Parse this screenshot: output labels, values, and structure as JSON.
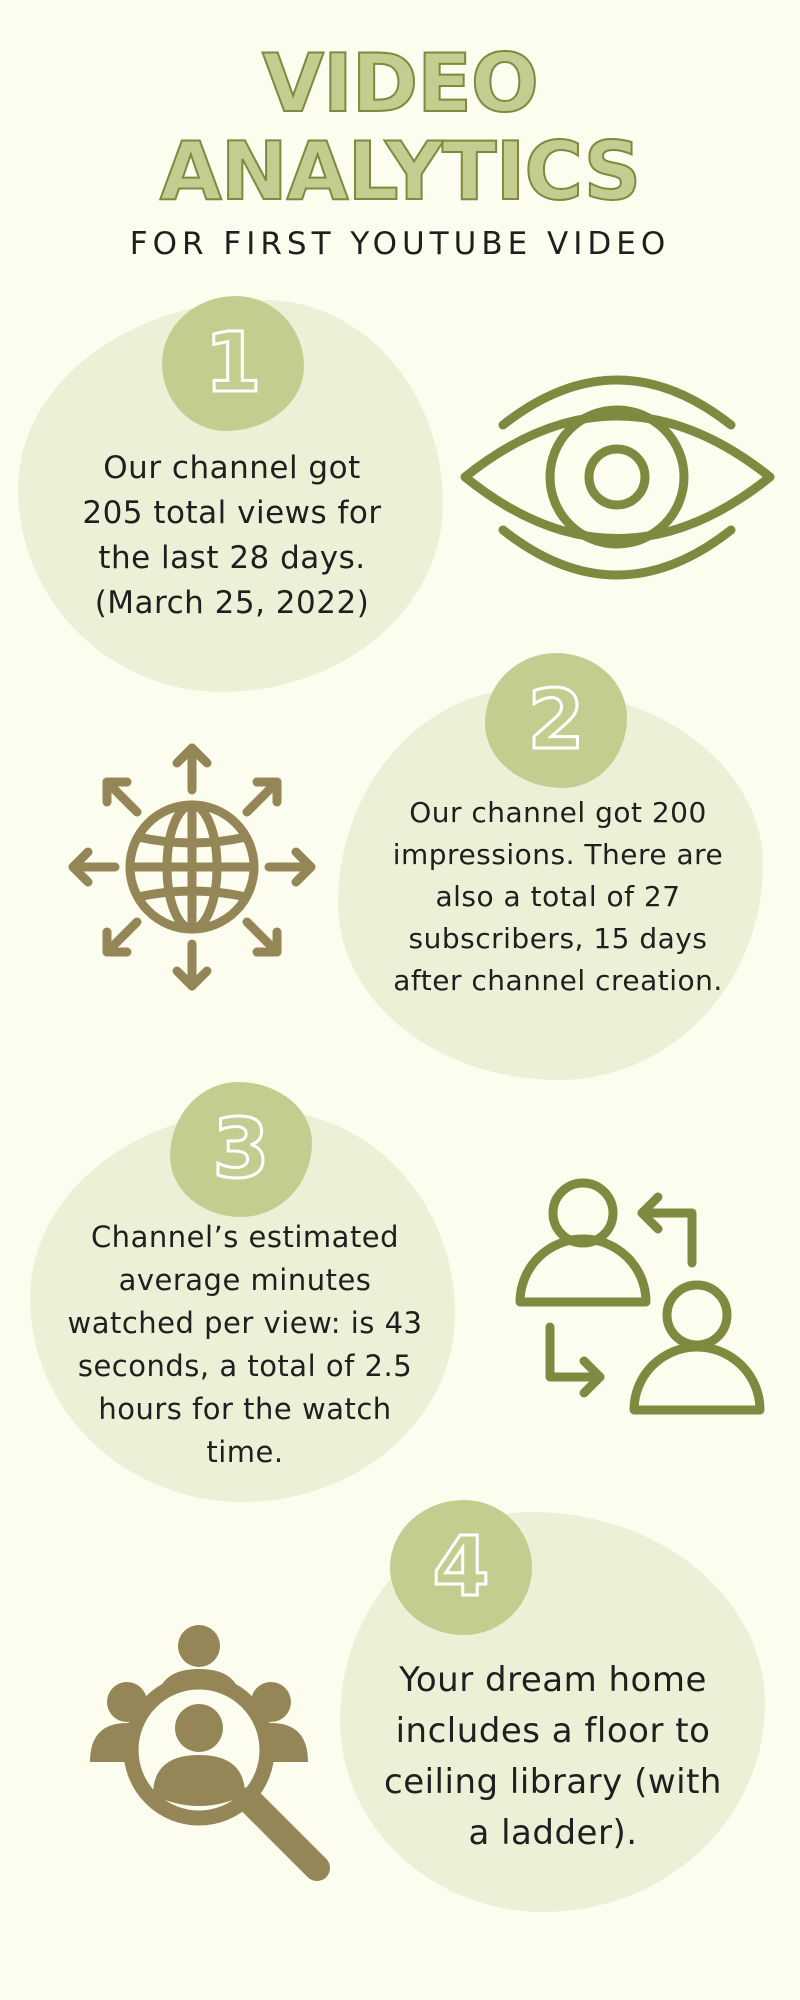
{
  "header": {
    "title_line1": "VIDEO",
    "title_line2": "ANALYTICS",
    "subtitle": "FOR FIRST YOUTUBE VIDEO"
  },
  "cards": [
    {
      "number": "1",
      "text": "Our channel got 205 total views for the last 28 days. (March 25, 2022)",
      "icon": "eye-icon"
    },
    {
      "number": "2",
      "text": "Our channel got 200 impressions. There are also a total of 27 subscribers, 15 days after channel creation.",
      "icon": "globe-arrows-icon"
    },
    {
      "number": "3",
      "text": "Channel’s estimated average minutes watched per view: is 43 seconds, a total of 2.5 hours for the watch time.",
      "icon": "users-exchange-icon"
    },
    {
      "number": "4",
      "text": "Your dream home includes a floor to ceiling library (with a ladder).",
      "icon": "audience-search-icon"
    }
  ],
  "colors": {
    "background": "#fcfdee",
    "blob": "#edf0d7",
    "badge": "#c3cd90",
    "icon_green": "#7d8a40",
    "icon_brown": "#948657"
  }
}
